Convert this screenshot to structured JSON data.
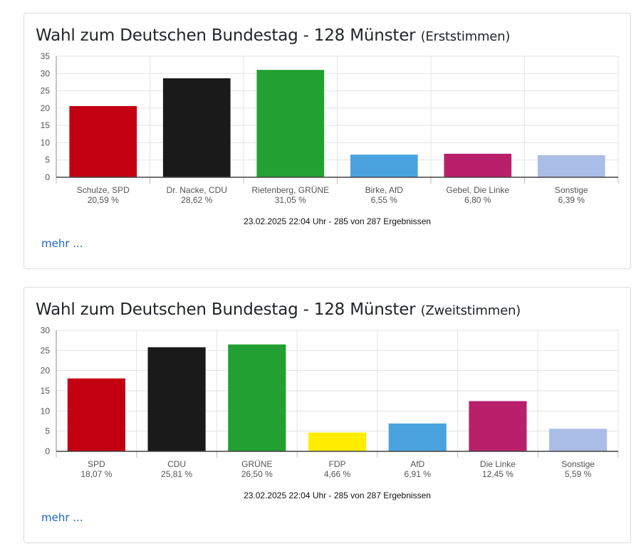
{
  "charts": [
    {
      "title_main": "Wahl zum Deutschen Bundestag - 128 Münster",
      "title_sub": "(Erststimmen)",
      "footer": "23.02.2025 22:04 Uhr - 285 von 287 Ergebnissen",
      "more_label": "mehr ...",
      "chart_data": {
        "type": "bar",
        "title": "Wahl zum Deutschen Bundestag - 128 Münster (Erststimmen)",
        "categories": [
          "Schulze, SPD",
          "Dr. Nacke, CDU",
          "Rietenberg, GRÜNE",
          "Birke, AfD",
          "Gebel, Die Linke",
          "Sonstige"
        ],
        "values": [
          20.59,
          28.62,
          31.05,
          6.55,
          6.8,
          6.39
        ],
        "value_labels": [
          "20,59 %",
          "28,62 %",
          "31,05 %",
          "6,55 %",
          "6,80 %",
          "6,39 %"
        ],
        "colors": [
          "#c20012",
          "#1a1a1a",
          "#22a032",
          "#4aa3df",
          "#b8206b",
          "#aabde6"
        ],
        "ylim": [
          0,
          35
        ],
        "yticks": [
          0,
          5,
          10,
          15,
          20,
          25,
          30,
          35
        ],
        "grid": true,
        "xlabel": "",
        "ylabel": ""
      }
    },
    {
      "title_main": "Wahl zum Deutschen Bundestag - 128 Münster",
      "title_sub": "(Zweitstimmen)",
      "footer": "23.02.2025 22:04 Uhr - 285 von 287 Ergebnissen",
      "more_label": "mehr ...",
      "chart_data": {
        "type": "bar",
        "title": "Wahl zum Deutschen Bundestag - 128 Münster (Zweitstimmen)",
        "categories": [
          "SPD",
          "CDU",
          "GRÜNE",
          "FDP",
          "AfD",
          "Die Linke",
          "Sonstige"
        ],
        "values": [
          18.07,
          25.81,
          26.5,
          4.66,
          6.91,
          12.45,
          5.59
        ],
        "value_labels": [
          "18,07 %",
          "25,81 %",
          "26,50 %",
          "4,66 %",
          "6,91 %",
          "12,45 %",
          "5,59 %"
        ],
        "colors": [
          "#c20012",
          "#1a1a1a",
          "#22a032",
          "#ffed00",
          "#4aa3df",
          "#b8206b",
          "#aabde6"
        ],
        "ylim": [
          0,
          30
        ],
        "yticks": [
          0,
          5,
          10,
          15,
          20,
          25,
          30
        ],
        "grid": true,
        "xlabel": "",
        "ylabel": ""
      }
    }
  ]
}
